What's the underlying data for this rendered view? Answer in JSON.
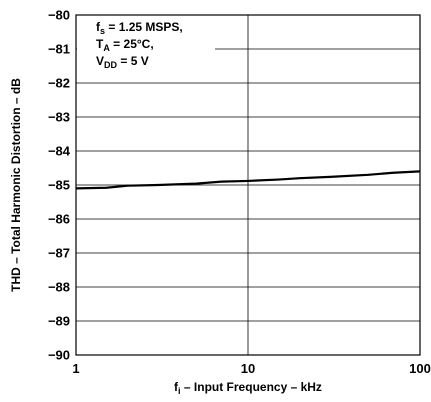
{
  "chart_data": {
    "type": "line",
    "x_scale": "log",
    "xlim": [
      1,
      100
    ],
    "ylim": [
      -90,
      -80
    ],
    "x_ticks": [
      1,
      10,
      100
    ],
    "x_tick_labels": [
      "1",
      "10",
      "100"
    ],
    "y_ticks": [
      -80,
      -81,
      -82,
      -83,
      -84,
      -85,
      -86,
      -87,
      -88,
      -89,
      -90
    ],
    "y_tick_labels": [
      "−80",
      "−81",
      "−82",
      "−83",
      "−84",
      "−85",
      "−86",
      "−87",
      "−88",
      "−89",
      "−90"
    ],
    "grid": true,
    "xlabel": {
      "main": "f",
      "sub": "i",
      "rest": " – Input Frequency – kHz"
    },
    "ylabel": "THD – Total Harmonic Distortion – dB",
    "annotation": [
      {
        "main": "f",
        "sub": "s",
        "rest": " = 1.25 MSPS,"
      },
      {
        "main": "T",
        "sub": "A",
        "rest": " = 25°C,"
      },
      {
        "main": "V",
        "sub": "DD",
        "rest": " = 5 V"
      }
    ],
    "series": [
      {
        "x": [
          1,
          1.5,
          2,
          3,
          5,
          7,
          10,
          15,
          20,
          30,
          50,
          70,
          100
        ],
        "y": [
          -85.1,
          -85.08,
          -85.02,
          -85.0,
          -84.96,
          -84.9,
          -84.88,
          -84.84,
          -84.8,
          -84.76,
          -84.7,
          -84.64,
          -84.6
        ]
      }
    ]
  }
}
